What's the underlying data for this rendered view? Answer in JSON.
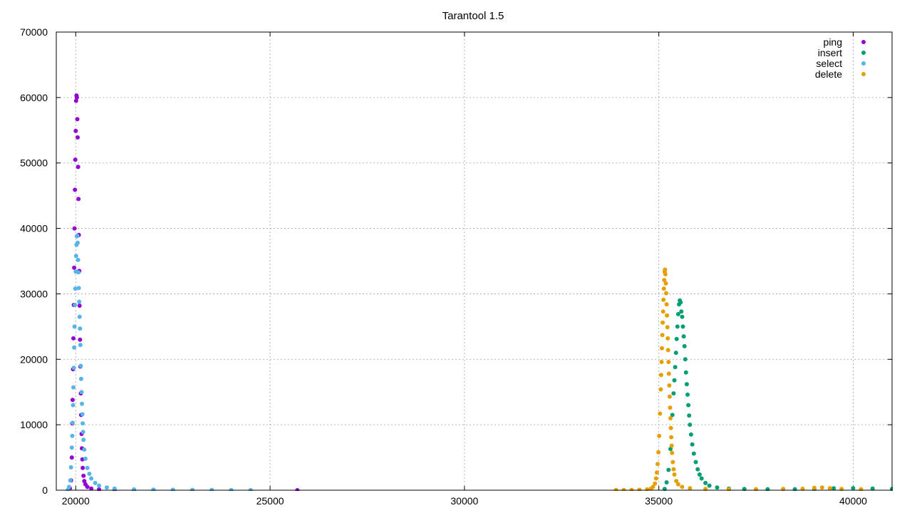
{
  "chart_data": {
    "type": "scatter",
    "title": "Tarantool 1.5",
    "xlabel": "",
    "ylabel": "",
    "xlim": [
      19500,
      41000
    ],
    "ylim": [
      0,
      70000
    ],
    "x_ticks": [
      20000,
      25000,
      30000,
      35000,
      40000
    ],
    "y_ticks": [
      0,
      10000,
      20000,
      30000,
      40000,
      50000,
      60000,
      70000
    ],
    "grid": true,
    "legend_position": "top-right",
    "series": [
      {
        "name": "ping",
        "color": "#9400d3",
        "points": [
          [
            19850,
            300
          ],
          [
            19880,
            1500
          ],
          [
            19900,
            5000
          ],
          [
            19910,
            10200
          ],
          [
            19920,
            13800
          ],
          [
            19930,
            18500
          ],
          [
            19940,
            23200
          ],
          [
            19950,
            28300
          ],
          [
            19960,
            34000
          ],
          [
            19970,
            40000
          ],
          [
            19980,
            45900
          ],
          [
            19990,
            50500
          ],
          [
            20000,
            54900
          ],
          [
            20010,
            59500
          ],
          [
            20020,
            60300
          ],
          [
            20030,
            60000
          ],
          [
            20040,
            56700
          ],
          [
            20050,
            53900
          ],
          [
            20060,
            49400
          ],
          [
            20070,
            44500
          ],
          [
            20080,
            39000
          ],
          [
            20090,
            33500
          ],
          [
            20100,
            28200
          ],
          [
            20110,
            23000
          ],
          [
            20120,
            18900
          ],
          [
            20130,
            14800
          ],
          [
            20140,
            11500
          ],
          [
            20150,
            8600
          ],
          [
            20160,
            6400
          ],
          [
            20170,
            4700
          ],
          [
            20180,
            3400
          ],
          [
            20200,
            2200
          ],
          [
            20220,
            1400
          ],
          [
            20250,
            900
          ],
          [
            20300,
            500
          ],
          [
            20400,
            250
          ],
          [
            20600,
            120
          ],
          [
            21000,
            60
          ],
          [
            21500,
            30
          ],
          [
            22000,
            20
          ],
          [
            22500,
            15
          ],
          [
            23000,
            10
          ],
          [
            23500,
            8
          ],
          [
            24000,
            5
          ],
          [
            24500,
            3
          ],
          [
            25700,
            2
          ]
        ]
      },
      {
        "name": "insert",
        "color": "#009e73",
        "points": [
          [
            35150,
            200
          ],
          [
            35200,
            1200
          ],
          [
            35250,
            3100
          ],
          [
            35300,
            6300
          ],
          [
            35350,
            11500
          ],
          [
            35380,
            14800
          ],
          [
            35400,
            16800
          ],
          [
            35420,
            18800
          ],
          [
            35440,
            21000
          ],
          [
            35460,
            23100
          ],
          [
            35480,
            25000
          ],
          [
            35500,
            26900
          ],
          [
            35520,
            28400
          ],
          [
            35540,
            29000
          ],
          [
            35560,
            28700
          ],
          [
            35580,
            27300
          ],
          [
            35600,
            26500
          ],
          [
            35620,
            25000
          ],
          [
            35640,
            23500
          ],
          [
            35660,
            22000
          ],
          [
            35680,
            20000
          ],
          [
            35700,
            18000
          ],
          [
            35720,
            16200
          ],
          [
            35740,
            14600
          ],
          [
            35760,
            13000
          ],
          [
            35780,
            11400
          ],
          [
            35800,
            10000
          ],
          [
            35830,
            8500
          ],
          [
            35860,
            7000
          ],
          [
            35900,
            5600
          ],
          [
            35950,
            4300
          ],
          [
            36000,
            3200
          ],
          [
            36050,
            2400
          ],
          [
            36100,
            1800
          ],
          [
            36200,
            1100
          ],
          [
            36300,
            700
          ],
          [
            36500,
            400
          ],
          [
            36800,
            250
          ],
          [
            37200,
            180
          ],
          [
            37800,
            150
          ],
          [
            38500,
            150
          ],
          [
            39000,
            200
          ],
          [
            39500,
            280
          ],
          [
            40000,
            300
          ],
          [
            40500,
            250
          ],
          [
            41000,
            200
          ]
        ]
      },
      {
        "name": "select",
        "color": "#56b4e9",
        "points": [
          [
            19800,
            100
          ],
          [
            19830,
            500
          ],
          [
            19860,
            1500
          ],
          [
            19880,
            3500
          ],
          [
            19900,
            6500
          ],
          [
            19910,
            8300
          ],
          [
            19920,
            10300
          ],
          [
            19930,
            13000
          ],
          [
            19940,
            15700
          ],
          [
            19950,
            18700
          ],
          [
            19960,
            21800
          ],
          [
            19970,
            25000
          ],
          [
            19980,
            28300
          ],
          [
            19990,
            30800
          ],
          [
            20000,
            33400
          ],
          [
            20010,
            35800
          ],
          [
            20020,
            37500
          ],
          [
            20030,
            38800
          ],
          [
            20040,
            38900
          ],
          [
            20050,
            37800
          ],
          [
            20060,
            35200
          ],
          [
            20070,
            33300
          ],
          [
            20080,
            30900
          ],
          [
            20090,
            28800
          ],
          [
            20100,
            26500
          ],
          [
            20110,
            24700
          ],
          [
            20120,
            22200
          ],
          [
            20130,
            19000
          ],
          [
            20140,
            17000
          ],
          [
            20150,
            15000
          ],
          [
            20160,
            13200
          ],
          [
            20170,
            11600
          ],
          [
            20180,
            10200
          ],
          [
            20190,
            8900
          ],
          [
            20200,
            7700
          ],
          [
            20220,
            6200
          ],
          [
            20250,
            4800
          ],
          [
            20300,
            3400
          ],
          [
            20350,
            2500
          ],
          [
            20400,
            1800
          ],
          [
            20500,
            1100
          ],
          [
            20600,
            700
          ],
          [
            20800,
            400
          ],
          [
            21000,
            250
          ],
          [
            21500,
            120
          ],
          [
            22000,
            80
          ],
          [
            22500,
            60
          ],
          [
            23000,
            40
          ],
          [
            23500,
            25
          ],
          [
            24000,
            15
          ],
          [
            24500,
            10
          ]
        ]
      },
      {
        "name": "delete",
        "color": "#e69f00",
        "points": [
          [
            33900,
            20
          ],
          [
            34100,
            30
          ],
          [
            34300,
            40
          ],
          [
            34500,
            60
          ],
          [
            34700,
            120
          ],
          [
            34800,
            250
          ],
          [
            34850,
            500
          ],
          [
            34900,
            1000
          ],
          [
            34930,
            1800
          ],
          [
            34950,
            2700
          ],
          [
            34970,
            4000
          ],
          [
            34990,
            5800
          ],
          [
            35010,
            8300
          ],
          [
            35030,
            11700
          ],
          [
            35050,
            15400
          ],
          [
            35060,
            17600
          ],
          [
            35070,
            19600
          ],
          [
            35080,
            21700
          ],
          [
            35090,
            23700
          ],
          [
            35100,
            25600
          ],
          [
            35110,
            27300
          ],
          [
            35120,
            29100
          ],
          [
            35130,
            30800
          ],
          [
            35140,
            32100
          ],
          [
            35150,
            33400
          ],
          [
            35160,
            33700
          ],
          [
            35170,
            33000
          ],
          [
            35180,
            31600
          ],
          [
            35190,
            30100
          ],
          [
            35200,
            28400
          ],
          [
            35210,
            26700
          ],
          [
            35220,
            24900
          ],
          [
            35230,
            23200
          ],
          [
            35240,
            21400
          ],
          [
            35250,
            19600
          ],
          [
            35260,
            17800
          ],
          [
            35270,
            16000
          ],
          [
            35280,
            14300
          ],
          [
            35290,
            12600
          ],
          [
            35300,
            11000
          ],
          [
            35310,
            9500
          ],
          [
            35320,
            8100
          ],
          [
            35330,
            6800
          ],
          [
            35340,
            5700
          ],
          [
            35360,
            4300
          ],
          [
            35380,
            3200
          ],
          [
            35400,
            2400
          ],
          [
            35450,
            1400
          ],
          [
            35500,
            900
          ],
          [
            35600,
            500
          ],
          [
            35800,
            300
          ],
          [
            36200,
            200
          ],
          [
            36800,
            150
          ],
          [
            37500,
            150
          ],
          [
            38200,
            180
          ],
          [
            38700,
            220
          ],
          [
            39000,
            350
          ],
          [
            39200,
            400
          ],
          [
            39400,
            300
          ],
          [
            39700,
            200
          ],
          [
            40200,
            150
          ]
        ]
      }
    ]
  }
}
